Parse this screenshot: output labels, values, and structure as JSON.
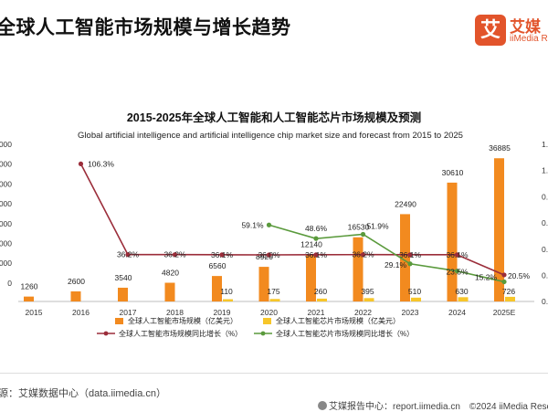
{
  "header": {
    "title": "全球人工智能市场规模与增长趋势"
  },
  "logo": {
    "mark": "艾",
    "cn": "艾媒",
    "en": "iiMedia R"
  },
  "footer": {
    "source": "源：艾媒数据中心（data.iimedia.cn）",
    "report_center": "艾媒报告中心：report.iimedia.cn",
    "copyright": "©2024 iiMedia Resea"
  },
  "colors": {
    "ai_bar": "#f28a1f",
    "chip_bar": "#f7c62a",
    "ai_line": "#9b2d3a",
    "chip_line": "#5a9a3c"
  },
  "chart_data": {
    "type": "bar",
    "title": "2015-2025年全球人工智能和人工智能芯片市场规模及预测",
    "subtitle": "Global artificial intelligence and artificial intelligence chip market size and forecast from 2015 to 2025",
    "categories": [
      "2015",
      "2016",
      "2017",
      "2018",
      "2019",
      "2020",
      "2021",
      "2022",
      "2023",
      "2024",
      "2025E"
    ],
    "y_left_ticks": [
      "000",
      "000",
      "000",
      "000",
      "000",
      "000",
      "000",
      "0"
    ],
    "y_right_ticks": [
      "1.",
      "1.",
      "0.",
      "0.",
      "0.",
      "0.",
      "0."
    ],
    "ylim": [
      0,
      40000
    ],
    "y2lim": [
      0,
      1.2
    ],
    "series": [
      {
        "name": "全球人工智能市场规模（亿美元）",
        "kind": "bar",
        "axis": "left",
        "color": "#f28a1f",
        "values": [
          1260,
          2600,
          3540,
          4820,
          6560,
          8920,
          12140,
          16530,
          22490,
          30610,
          36885
        ],
        "labels": [
          "1260",
          "2600",
          "3540",
          "4820",
          "6560",
          "8920",
          "12140",
          "16530",
          "22490",
          "30610",
          "36885"
        ]
      },
      {
        "name": "全球人工智能芯片市场规模（亿美元）",
        "kind": "bar",
        "axis": "left",
        "color": "#f7c62a",
        "values": [
          null,
          null,
          null,
          null,
          110,
          175,
          260,
          395,
          510,
          630,
          726
        ],
        "labels": [
          "",
          "",
          "",
          "",
          "110",
          "175",
          "260",
          "395",
          "510",
          "630",
          "726"
        ]
      },
      {
        "name": "全球人工智能市场规模同比增长（%）",
        "kind": "line",
        "axis": "right",
        "color": "#9b2d3a",
        "values": [
          null,
          1.063,
          0.362,
          0.362,
          0.361,
          0.36,
          0.361,
          0.362,
          0.361,
          0.361,
          0.205
        ],
        "labels": [
          "",
          "106.3%",
          "36.2%",
          "36.2%",
          "36.1%",
          "36.0%",
          "36.1%",
          "36.2%",
          "36.1%",
          "36.1%",
          "20.5%"
        ]
      },
      {
        "name": "全球人工智能芯片市场规模同比增长（%）",
        "kind": "line",
        "axis": "right",
        "color": "#5a9a3c",
        "values": [
          null,
          null,
          null,
          null,
          null,
          0.591,
          0.486,
          0.519,
          0.291,
          0.235,
          0.152
        ],
        "labels": [
          "",
          "",
          "",
          "",
          "",
          "59.1%",
          "48.6%",
          "51.9%",
          "29.1%",
          "23.5%",
          "15.2%"
        ]
      }
    ],
    "legend_position": "bottom",
    "grid": false
  }
}
